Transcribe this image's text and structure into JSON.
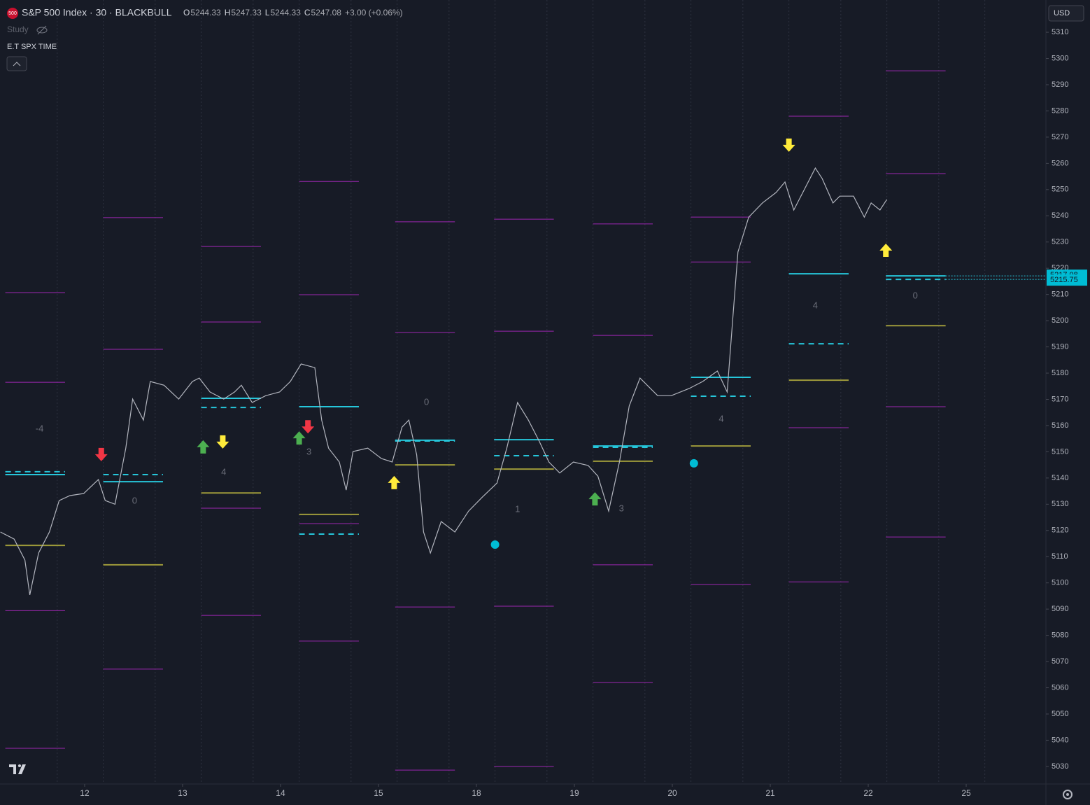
{
  "header": {
    "badge": "500",
    "symbol": "S&P 500 Index · 30 · BLACKBULL",
    "ohlc": [
      {
        "label": "O",
        "value": "5244.33"
      },
      {
        "label": "H",
        "value": "5247.33"
      },
      {
        "label": "L",
        "value": "5244.33"
      },
      {
        "label": "C",
        "value": "5247.08"
      }
    ],
    "change": "+3.00 (+0.06%)",
    "study": "Study",
    "indicator": "E.T SPX TIME",
    "currency": "USD"
  },
  "chart_data": {
    "type": "line",
    "xlim": [
      -0.864,
      9.814
    ],
    "xticks": [
      {
        "value": 0,
        "label": "12"
      },
      {
        "value": 1,
        "label": "13"
      },
      {
        "value": 2,
        "label": "14"
      },
      {
        "value": 3,
        "label": "15"
      },
      {
        "value": 4,
        "label": "18"
      },
      {
        "value": 5,
        "label": "19"
      },
      {
        "value": 6,
        "label": "20"
      },
      {
        "value": 7,
        "label": "21"
      },
      {
        "value": 8,
        "label": "22"
      },
      {
        "value": 9,
        "label": "25"
      }
    ],
    "ylim": [
      5023.3,
      5322.3
    ],
    "yticks": [
      5030,
      5040,
      5050,
      5060,
      5070,
      5080,
      5090,
      5100,
      5110,
      5120,
      5130,
      5140,
      5150,
      5160,
      5170,
      5180,
      5190,
      5200,
      5210,
      5220,
      5230,
      5240,
      5250,
      5260,
      5270,
      5280,
      5290,
      5300,
      5310
    ],
    "grid": false,
    "series": [
      {
        "color": "#b2b5be",
        "x": [
          -0.86,
          -0.72,
          -0.61,
          -0.56,
          -0.47,
          -0.36,
          -0.26,
          -0.15,
          -0.01,
          0.14,
          0.21,
          0.31,
          0.42,
          0.49,
          0.6,
          0.67,
          0.81,
          0.96,
          1.1,
          1.17,
          1.28,
          1.42,
          1.53,
          1.6,
          1.71,
          1.85,
          1.99,
          2.1,
          2.21,
          2.35,
          2.42,
          2.49,
          2.6,
          2.67,
          2.74,
          2.89,
          3.03,
          3.14,
          3.24,
          3.31,
          3.39,
          3.46,
          3.53,
          3.64,
          3.78,
          3.92,
          4.06,
          4.21,
          4.31,
          4.42,
          4.53,
          4.64,
          4.74,
          4.85,
          4.99,
          5.14,
          5.24,
          5.35,
          5.46,
          5.56,
          5.67,
          5.85,
          5.99,
          6.17,
          6.31,
          6.46,
          6.56,
          6.62,
          6.67,
          6.78,
          6.92,
          7.06,
          7.15,
          7.24,
          7.35,
          7.46,
          7.53,
          7.64,
          7.71,
          7.85,
          7.96,
          8.03,
          8.12,
          8.19
        ],
        "values": [
          5119.4,
          5116.7,
          5108.7,
          5095.4,
          5111.4,
          5119.4,
          5131.4,
          5133.3,
          5134.1,
          5139.4,
          5131.4,
          5130.0,
          5151.4,
          5170.1,
          5162.1,
          5176.8,
          5175.4,
          5170.1,
          5176.8,
          5178.1,
          5172.8,
          5170.1,
          5172.8,
          5175.4,
          5168.8,
          5171.4,
          5172.8,
          5176.8,
          5183.5,
          5182.1,
          5162.1,
          5151.4,
          5146.1,
          5135.4,
          5150.1,
          5151.4,
          5147.4,
          5146.1,
          5159.4,
          5162.1,
          5148.8,
          5119.4,
          5111.4,
          5123.4,
          5119.4,
          5127.4,
          5132.7,
          5138.1,
          5151.4,
          5168.8,
          5162.1,
          5154.1,
          5146.1,
          5141.9,
          5146.1,
          5144.8,
          5140.7,
          5127.4,
          5146.1,
          5167.5,
          5178.1,
          5171.4,
          5171.4,
          5174.1,
          5176.8,
          5180.8,
          5172.8,
          5202.2,
          5226.2,
          5239.5,
          5244.9,
          5248.9,
          5252.9,
          5242.2,
          5250.2,
          5258.2,
          5254.2,
          5244.9,
          5247.5,
          5247.5,
          5239.5,
          5244.9,
          5242.2,
          5246.2
        ]
      }
    ],
    "sessions_x": [
      [
        -0.81,
        -0.2
      ],
      [
        0.19,
        0.8
      ],
      [
        1.19,
        1.8
      ],
      [
        2.19,
        2.8
      ],
      [
        3.17,
        3.78
      ],
      [
        4.18,
        4.79
      ],
      [
        5.19,
        5.8
      ],
      [
        6.19,
        6.8
      ],
      [
        7.19,
        7.8
      ],
      [
        8.18,
        8.79
      ]
    ],
    "levels": [
      {
        "color": "#9c27b0",
        "width": 1,
        "dash": false,
        "values": [
          [
            5210.7,
            5176.5,
            5089.4,
            5036.9
          ],
          [
            5239.3,
            5189.1,
            5067.1
          ],
          [
            5228.3,
            5199.5,
            5128.5,
            5087.6
          ],
          [
            5253.1,
            5209.9,
            5122.6,
            5077.8
          ],
          [
            5237.7,
            5195.5,
            5090.8,
            5028.6
          ],
          [
            5238.7,
            5196.0,
            5091.1,
            5030.0
          ],
          [
            5236.9,
            5194.4,
            5106.9,
            5062.0
          ],
          [
            5239.5,
            5222.4,
            5099.4
          ],
          [
            5278.0,
            5159.2,
            5100.4
          ],
          [
            5295.3,
            5256.1,
            5167.2,
            5117.5
          ]
        ]
      },
      {
        "color": "#26c6da",
        "width": 2,
        "dash": false,
        "values": [
          5141.3,
          5138.6,
          5170.4,
          5167.2,
          5154.4,
          5154.6,
          5152.2,
          5178.4,
          5217.9,
          5217.08
        ]
      },
      {
        "color": "#26c6da",
        "width": 2,
        "dash": true,
        "values": [
          5142.4,
          5141.3,
          5166.9,
          5118.6,
          5154.1,
          5148.5,
          5151.7,
          5171.2,
          5191.2,
          5215.75
        ]
      },
      {
        "color": "#9e9a3a",
        "width": 2,
        "dash": false,
        "values": [
          5114.3,
          5106.9,
          5134.3,
          5126.1,
          5145.0,
          5143.4,
          5146.4,
          5152.2,
          5177.3,
          5198.1
        ]
      }
    ],
    "annotations": [
      {
        "text": "-4",
        "x": -0.46,
        "y": 5158.6
      },
      {
        "text": "0",
        "x": 0.51,
        "y": 5131.1
      },
      {
        "text": "4",
        "x": 1.42,
        "y": 5142.1
      },
      {
        "text": "3",
        "x": 2.29,
        "y": 5149.8
      },
      {
        "text": "0",
        "x": 3.49,
        "y": 5168.8
      },
      {
        "text": "1",
        "x": 4.42,
        "y": 5127.9
      },
      {
        "text": "3",
        "x": 5.48,
        "y": 5128.2
      },
      {
        "text": "4",
        "x": 6.5,
        "y": 5162.4
      },
      {
        "text": "4",
        "x": 7.46,
        "y": 5205.6
      },
      {
        "text": "0",
        "x": 8.48,
        "y": 5209.4
      }
    ],
    "markers": [
      {
        "shape": "arrow-down",
        "color": "#f23645",
        "x": [
          0.17,
          2.28
        ],
        "y": [
          5148.8,
          5159.4
        ]
      },
      {
        "shape": "arrow-up",
        "color": "#4caf50",
        "x": [
          1.21,
          2.19,
          5.21
        ],
        "y": [
          5152.0,
          5155.4,
          5132.2
        ]
      },
      {
        "shape": "arrow-down",
        "color": "#ffeb3b",
        "x": [
          1.41,
          7.19
        ],
        "y": [
          5153.6,
          5266.8
        ]
      },
      {
        "shape": "arrow-up",
        "color": "#ffeb3b",
        "x": [
          3.16,
          8.18
        ],
        "y": [
          5138.4,
          5227.0
        ]
      },
      {
        "shape": "circle",
        "color": "#00bcd4",
        "x": [
          4.19,
          6.22
        ],
        "y": [
          5114.6,
          5145.6
        ]
      }
    ]
  }
}
